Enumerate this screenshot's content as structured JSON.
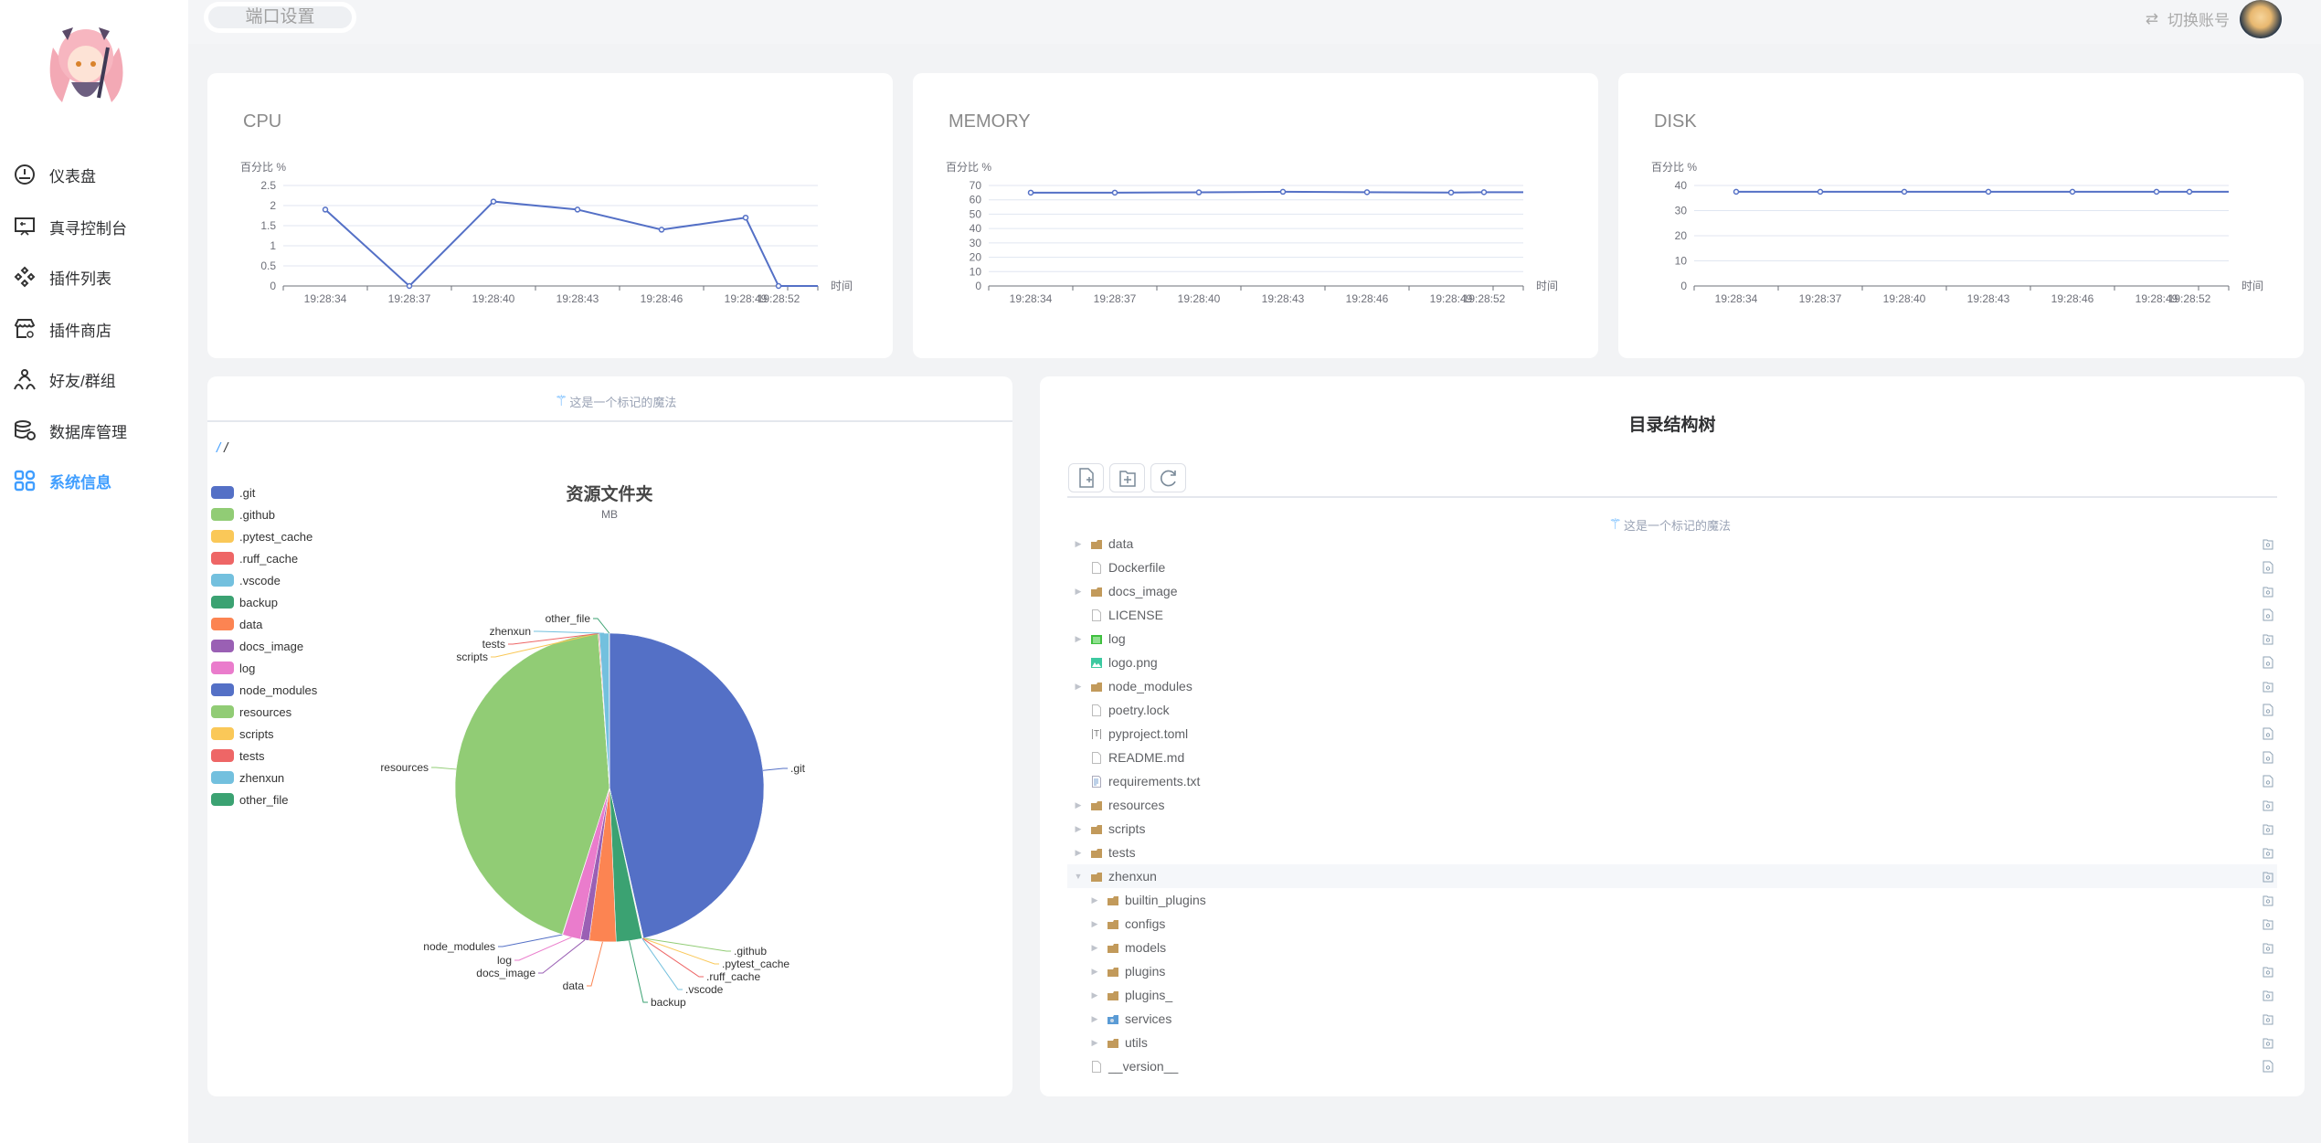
{
  "sidebar": {
    "items": [
      {
        "label": "仪表盘",
        "icon": "dashboard-icon"
      },
      {
        "label": "真寻控制台",
        "icon": "console-icon"
      },
      {
        "label": "插件列表",
        "icon": "plugins-icon"
      },
      {
        "label": "插件商店",
        "icon": "store-icon"
      },
      {
        "label": "好友/群组",
        "icon": "friends-icon"
      },
      {
        "label": "数据库管理",
        "icon": "database-icon"
      },
      {
        "label": "系统信息",
        "icon": "grid-icon",
        "active": true
      }
    ]
  },
  "header": {
    "port_settings": "端口设置",
    "switch_account": "切换账号"
  },
  "colors": {
    "accent": "#409eff",
    "line": "#5470c6"
  },
  "magic_text": "这是一个标记的魔法",
  "path": {
    "root": "/",
    "current": "/"
  },
  "tree": {
    "title": "目录结构树",
    "buttons": [
      "new-file",
      "new-folder",
      "refresh"
    ],
    "rows": [
      {
        "name": "data",
        "type": "folder",
        "depth": 0
      },
      {
        "name": "Dockerfile",
        "type": "file",
        "depth": 0
      },
      {
        "name": "docs_image",
        "type": "folder",
        "depth": 0
      },
      {
        "name": "LICENSE",
        "type": "file",
        "depth": 0
      },
      {
        "name": "log",
        "type": "log-folder",
        "depth": 0
      },
      {
        "name": "logo.png",
        "type": "image",
        "depth": 0
      },
      {
        "name": "node_modules",
        "type": "folder",
        "depth": 0
      },
      {
        "name": "poetry.lock",
        "type": "file",
        "depth": 0
      },
      {
        "name": "pyproject.toml",
        "type": "toml",
        "depth": 0
      },
      {
        "name": "README.md",
        "type": "file",
        "depth": 0
      },
      {
        "name": "requirements.txt",
        "type": "text",
        "depth": 0
      },
      {
        "name": "resources",
        "type": "folder",
        "depth": 0
      },
      {
        "name": "scripts",
        "type": "folder",
        "depth": 0
      },
      {
        "name": "tests",
        "type": "folder",
        "depth": 0
      },
      {
        "name": "zhenxun",
        "type": "folder",
        "depth": 0,
        "expanded": true,
        "highlighted": true
      },
      {
        "name": "builtin_plugins",
        "type": "folder",
        "depth": 1
      },
      {
        "name": "configs",
        "type": "folder",
        "depth": 1
      },
      {
        "name": "models",
        "type": "folder",
        "depth": 1
      },
      {
        "name": "plugins",
        "type": "folder",
        "depth": 1
      },
      {
        "name": "plugins_",
        "type": "folder",
        "depth": 1
      },
      {
        "name": "services",
        "type": "services-folder",
        "depth": 1
      },
      {
        "name": "utils",
        "type": "folder",
        "depth": 1
      },
      {
        "name": "__version__",
        "type": "file",
        "depth": 0
      }
    ]
  },
  "chart_data": [
    {
      "type": "line",
      "title": "CPU",
      "ylabel": "百分比 %",
      "xlabel": "时间",
      "ylim": [
        0,
        2.5
      ],
      "yticks": [
        "0",
        "0.5",
        "1",
        "1.5",
        "2",
        "2.5"
      ],
      "categories": [
        "19:28:34",
        "19:28:37",
        "19:28:40",
        "19:28:43",
        "19:28:46",
        "19:28:49",
        "19:28:52"
      ],
      "values": [
        1.9,
        0,
        2.1,
        1.9,
        1.4,
        1.7,
        0
      ],
      "grid": true,
      "color": "#5470c6"
    },
    {
      "type": "line",
      "title": "MEMORY",
      "ylabel": "百分比 %",
      "xlabel": "时间",
      "ylim": [
        0,
        70
      ],
      "yticks": [
        "0",
        "10",
        "20",
        "30",
        "40",
        "50",
        "60",
        "70"
      ],
      "categories": [
        "19:28:34",
        "19:28:37",
        "19:28:40",
        "19:28:43",
        "19:28:46",
        "19:28:49",
        "19:28:52"
      ],
      "values": [
        65,
        65,
        65.2,
        65.6,
        65.3,
        65.1,
        65.3
      ],
      "grid": true,
      "color": "#5470c6"
    },
    {
      "type": "line",
      "title": "DISK",
      "ylabel": "百分比 %",
      "xlabel": "时间",
      "ylim": [
        0,
        40
      ],
      "yticks": [
        "0",
        "10",
        "20",
        "30",
        "40"
      ],
      "categories": [
        "19:28:34",
        "19:28:37",
        "19:28:40",
        "19:28:43",
        "19:28:46",
        "19:28:49",
        "19:28:52"
      ],
      "values": [
        37.5,
        37.5,
        37.5,
        37.5,
        37.5,
        37.5,
        37.5
      ],
      "grid": true,
      "color": "#5470c6"
    },
    {
      "type": "pie",
      "title": "资源文件夹",
      "subtitle": "MB",
      "legend": "left",
      "slices": [
        {
          "name": ".git",
          "value": 46.5,
          "color": "#5470c6"
        },
        {
          "name": ".github",
          "value": 0.05,
          "color": "#91cc75"
        },
        {
          "name": ".pytest_cache",
          "value": 0.02,
          "color": "#fac858"
        },
        {
          "name": ".ruff_cache",
          "value": 0.05,
          "color": "#ee6666"
        },
        {
          "name": ".vscode",
          "value": 0.02,
          "color": "#73c0de"
        },
        {
          "name": "backup",
          "value": 2.7,
          "color": "#3ba272"
        },
        {
          "name": "data",
          "value": 2.8,
          "color": "#fc8452"
        },
        {
          "name": "docs_image",
          "value": 0.9,
          "color": "#9a60b4"
        },
        {
          "name": "log",
          "value": 1.9,
          "color": "#ea7ccc"
        },
        {
          "name": "node_modules",
          "value": 0.05,
          "color": "#5470c6"
        },
        {
          "name": "resources",
          "value": 43.9,
          "color": "#91cc75"
        },
        {
          "name": "scripts",
          "value": 0.02,
          "color": "#fac858"
        },
        {
          "name": "tests",
          "value": 0.1,
          "color": "#ee6666"
        },
        {
          "name": "zhenxun",
          "value": 1.0,
          "color": "#73c0de"
        },
        {
          "name": "other_file",
          "value": 0.05,
          "color": "#3ba272"
        }
      ]
    }
  ]
}
